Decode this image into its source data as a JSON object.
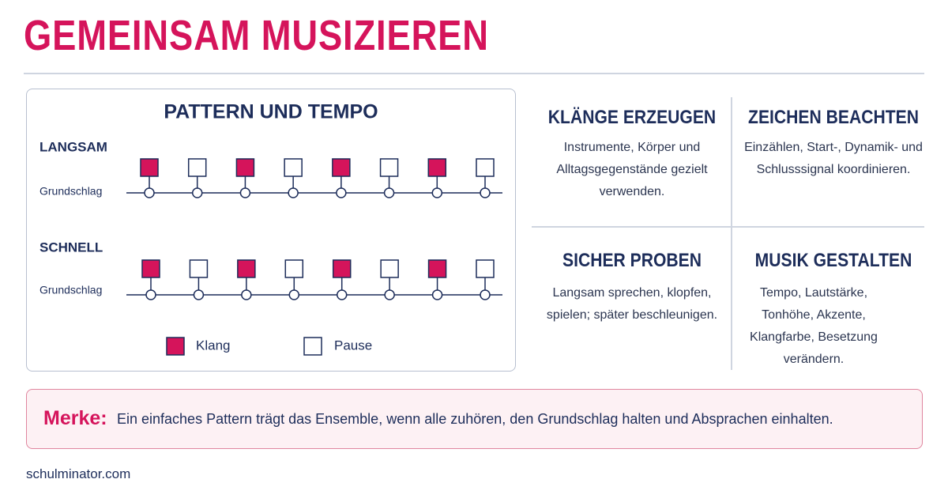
{
  "header": {
    "title": "GEMEINSAM MUSIZIEREN"
  },
  "pattern_panel": {
    "title": "PATTERN UND TEMPO",
    "rows": [
      {
        "label": "LANGSAM",
        "beat_label": "Grundschlag"
      },
      {
        "label": "SCHNELL",
        "beat_label": "Grundschlag"
      }
    ],
    "legend": [
      "Klang",
      "Pause"
    ]
  },
  "cards": [
    {
      "title": "KLÄNGE ERZEUGEN",
      "text": "Instrumente, Körper und Alltagsgegenstände gezielt verwenden."
    },
    {
      "title": "ZEICHEN BEACHTEN",
      "text": "Einzählen, Start-, Dynamik- und Schlusssignal koordinieren."
    },
    {
      "title": "SICHER PROBEN",
      "text": "Langsam sprechen, klopfen, spielen; später beschleunigen."
    },
    {
      "title": "MUSIK GESTALTEN",
      "text": "Tempo, Lautstärke, Tonhöhe, Akzente, Klangfarbe, Besetzung verändern."
    }
  ],
  "note": {
    "label": "Merke:",
    "text": "Ein einfaches Pattern trägt das Ensemble, wenn alle zuhören, den Grundschlag halten und Absprachen einhalten."
  },
  "footer": {
    "source": "schulminator.com"
  }
}
